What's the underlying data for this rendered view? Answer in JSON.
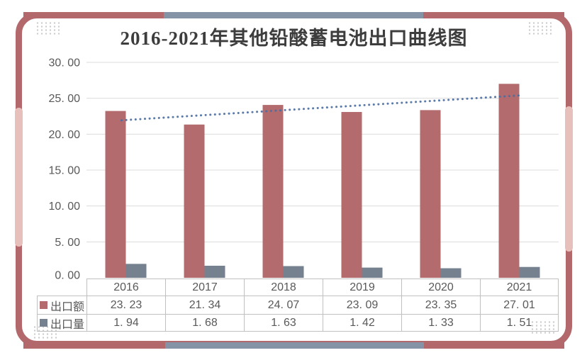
{
  "title": "2016-2021年其他铅酸蓄电池出口曲线图",
  "colors": {
    "frame_red": "#b3686c",
    "frame_pink": "#e8c0bb",
    "frame_gray": "#8493a6",
    "bar_red": "#b36b6e",
    "bar_blue": "#75818f",
    "trend_blue": "#4a6da1",
    "gridline": "#dcdcdc",
    "table_border": "#c0c0c0",
    "text": "#595959",
    "title_color": "#3d3d3d",
    "corner_dots": "#cbcbcb"
  },
  "chart_data": {
    "type": "bar",
    "title": "2016-2021年其他铅酸蓄电池出口曲线图",
    "categories": [
      "2016",
      "2017",
      "2018",
      "2019",
      "2020",
      "2021"
    ],
    "series": [
      {
        "name": "出口额",
        "values": [
          23.23,
          21.34,
          24.07,
          23.09,
          23.35,
          27.01
        ],
        "color": "#b36b6e"
      },
      {
        "name": "出口量",
        "values": [
          1.94,
          1.68,
          1.63,
          1.42,
          1.33,
          1.51
        ],
        "color": "#75818f"
      }
    ],
    "trendline": {
      "on_series": "出口额",
      "fit": "linear",
      "style": "dotted",
      "color": "#4a6da1"
    },
    "y_axis": {
      "min": 0,
      "max": 30,
      "step": 5,
      "tick_labels": [
        "0. 00",
        "5. 00",
        "10. 00",
        "15. 00",
        "20. 00",
        "25. 00",
        "30. 00"
      ]
    },
    "grid": true,
    "legend_position": "table-left",
    "data_table": true
  }
}
